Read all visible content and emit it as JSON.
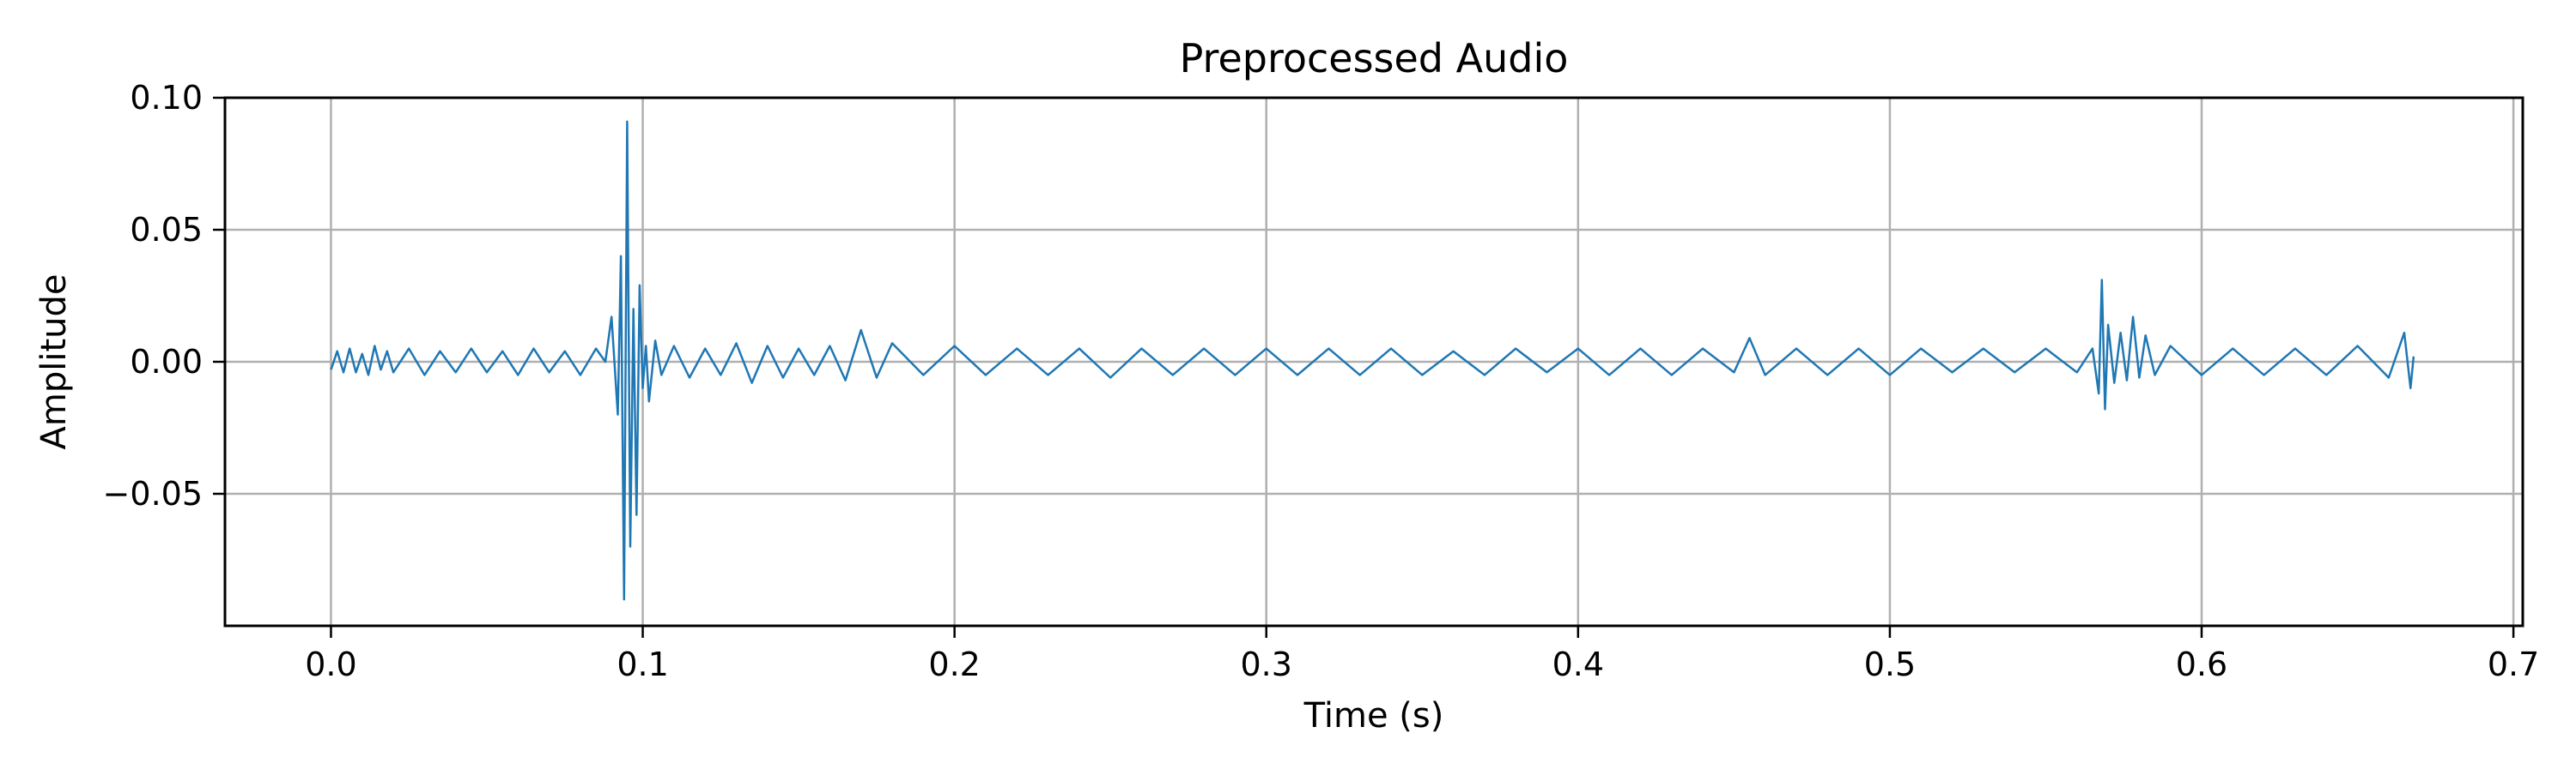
{
  "chart_data": {
    "type": "line",
    "title": "Preprocessed Audio",
    "xlabel": "Time (s)",
    "ylabel": "Amplitude",
    "xlim": [
      -0.034,
      0.703
    ],
    "ylim": [
      -0.1,
      0.1
    ],
    "x_ticks": [
      0.0,
      0.1,
      0.2,
      0.3,
      0.4,
      0.5,
      0.6,
      0.7
    ],
    "x_tick_labels": [
      "0.0",
      "0.1",
      "0.2",
      "0.3",
      "0.4",
      "0.5",
      "0.6",
      "0.7"
    ],
    "y_ticks": [
      -0.05,
      0.0,
      0.05,
      0.1
    ],
    "y_tick_labels": [
      "−0.05",
      "0.00",
      "0.05",
      "0.10"
    ],
    "grid": true,
    "line_color": "#1f77b4",
    "series": [
      {
        "x": [
          0.0,
          0.002,
          0.004,
          0.006,
          0.008,
          0.01,
          0.012,
          0.014,
          0.016,
          0.018,
          0.02,
          0.025,
          0.03,
          0.035,
          0.04,
          0.045,
          0.05,
          0.055,
          0.06,
          0.065,
          0.07,
          0.075,
          0.08,
          0.085,
          0.088,
          0.09,
          0.092,
          0.093,
          0.094,
          0.095,
          0.096,
          0.097,
          0.098,
          0.099,
          0.1,
          0.101,
          0.102,
          0.104,
          0.106,
          0.11,
          0.115,
          0.12,
          0.125,
          0.13,
          0.135,
          0.14,
          0.145,
          0.15,
          0.155,
          0.16,
          0.165,
          0.17,
          0.175,
          0.18,
          0.19,
          0.2,
          0.21,
          0.22,
          0.23,
          0.24,
          0.25,
          0.26,
          0.27,
          0.28,
          0.29,
          0.3,
          0.31,
          0.32,
          0.33,
          0.34,
          0.35,
          0.36,
          0.37,
          0.38,
          0.39,
          0.4,
          0.41,
          0.42,
          0.43,
          0.44,
          0.45,
          0.455,
          0.46,
          0.47,
          0.48,
          0.49,
          0.5,
          0.51,
          0.52,
          0.53,
          0.54,
          0.55,
          0.56,
          0.565,
          0.567,
          0.568,
          0.569,
          0.57,
          0.572,
          0.574,
          0.576,
          0.578,
          0.58,
          0.582,
          0.585,
          0.59,
          0.6,
          0.61,
          0.62,
          0.63,
          0.64,
          0.65,
          0.66,
          0.665,
          0.667,
          0.668
        ],
        "y": [
          -0.003,
          0.004,
          -0.004,
          0.005,
          -0.004,
          0.003,
          -0.005,
          0.006,
          -0.003,
          0.004,
          -0.004,
          0.005,
          -0.005,
          0.004,
          -0.004,
          0.005,
          -0.004,
          0.004,
          -0.005,
          0.005,
          -0.004,
          0.004,
          -0.005,
          0.005,
          0.0,
          0.017,
          -0.02,
          0.04,
          -0.09,
          0.091,
          -0.07,
          0.02,
          -0.058,
          0.029,
          -0.01,
          0.006,
          -0.015,
          0.008,
          -0.005,
          0.006,
          -0.006,
          0.005,
          -0.005,
          0.007,
          -0.008,
          0.006,
          -0.006,
          0.005,
          -0.005,
          0.006,
          -0.007,
          0.012,
          -0.006,
          0.007,
          -0.005,
          0.006,
          -0.005,
          0.005,
          -0.005,
          0.005,
          -0.006,
          0.005,
          -0.005,
          0.005,
          -0.005,
          0.005,
          -0.005,
          0.005,
          -0.005,
          0.005,
          -0.005,
          0.004,
          -0.005,
          0.005,
          -0.004,
          0.005,
          -0.005,
          0.005,
          -0.005,
          0.005,
          -0.004,
          0.009,
          -0.005,
          0.005,
          -0.005,
          0.005,
          -0.005,
          0.005,
          -0.004,
          0.005,
          -0.004,
          0.005,
          -0.004,
          0.005,
          -0.012,
          0.031,
          -0.018,
          0.014,
          -0.008,
          0.011,
          -0.007,
          0.017,
          -0.006,
          0.01,
          -0.005,
          0.006,
          -0.005,
          0.005,
          -0.005,
          0.005,
          -0.005,
          0.006,
          -0.006,
          0.011,
          -0.01,
          0.002
        ]
      }
    ]
  }
}
